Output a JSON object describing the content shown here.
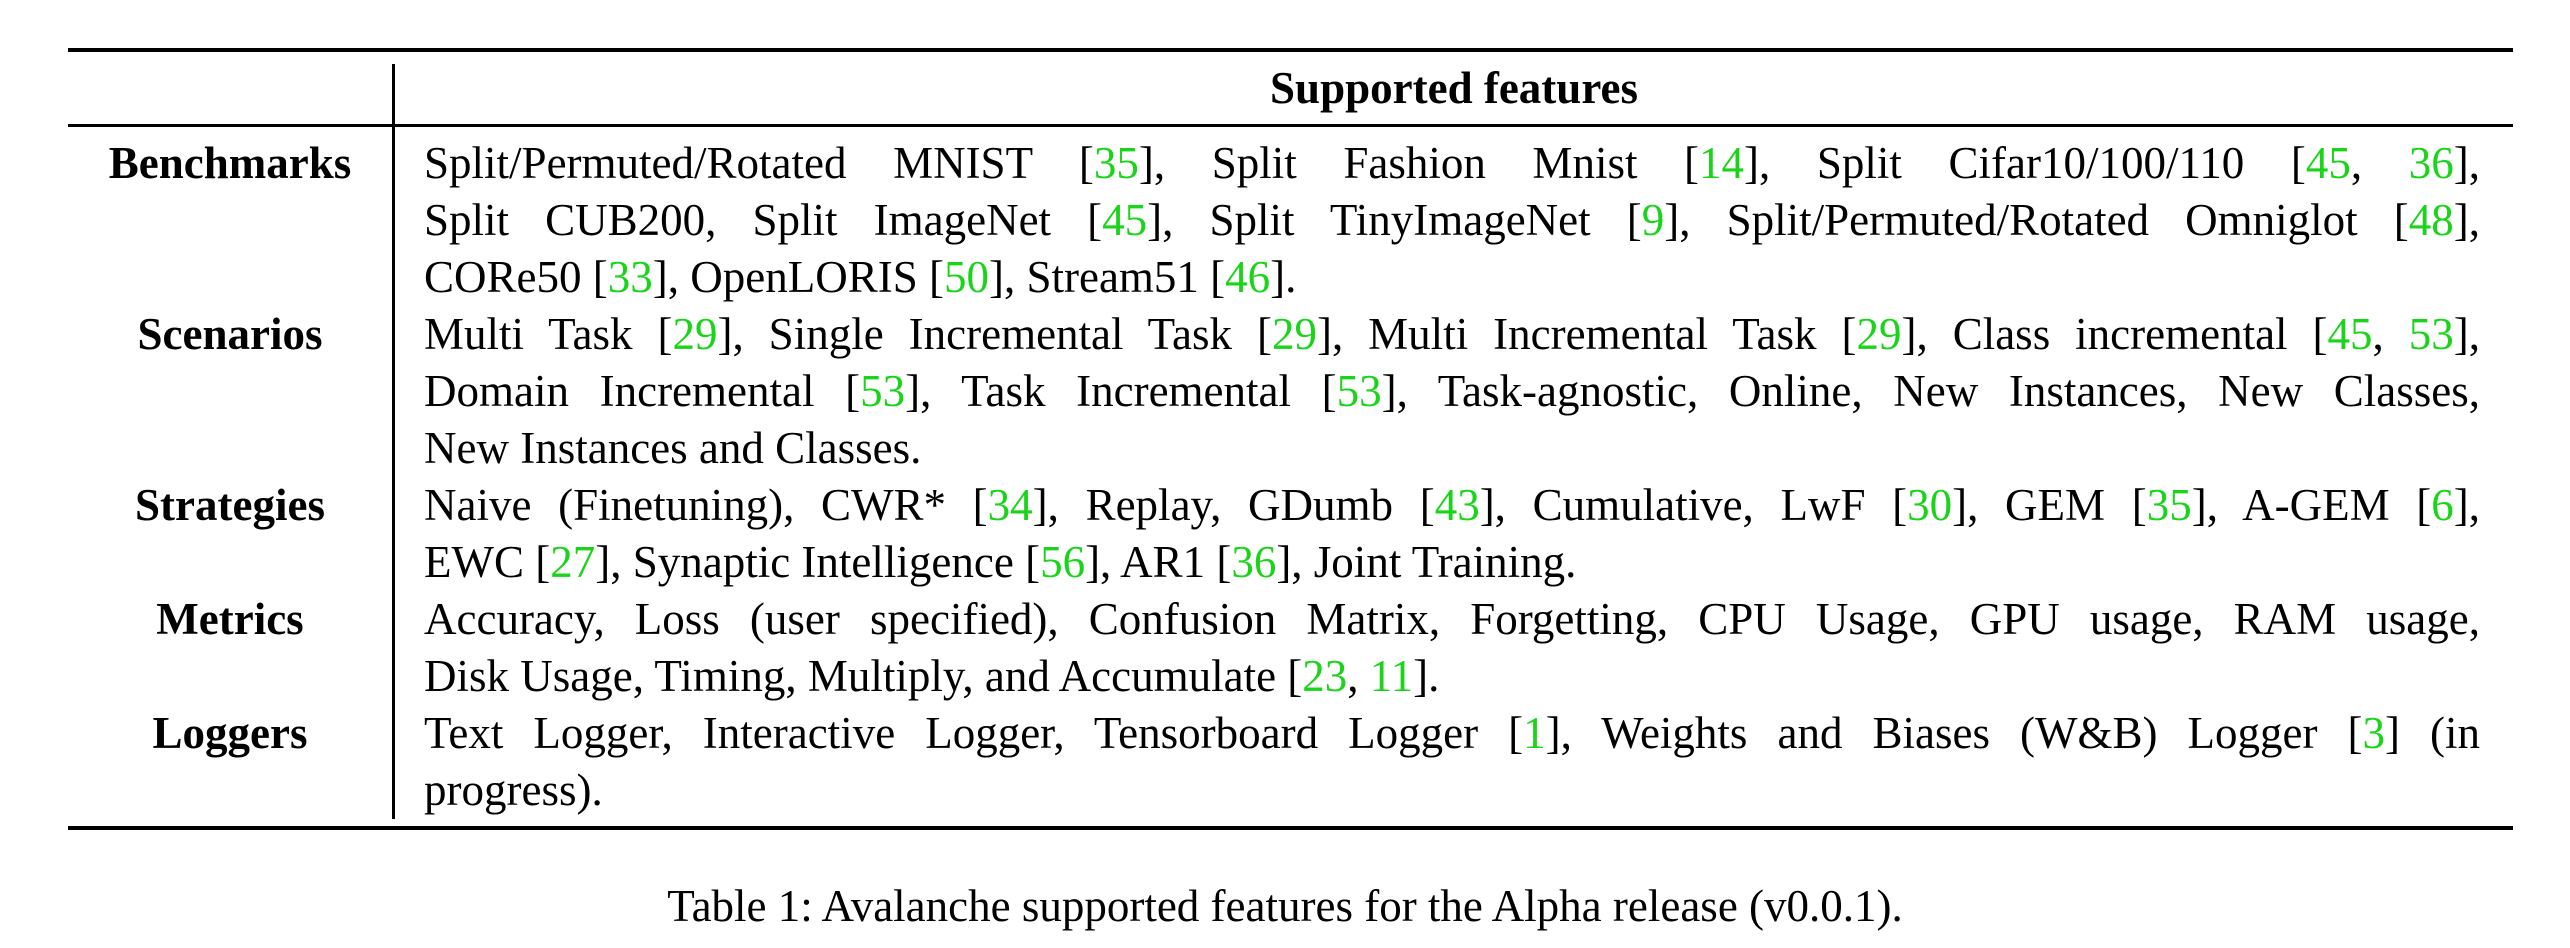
{
  "table": {
    "header": "Supported features",
    "rows": [
      {
        "label": "Benchmarks",
        "lines": [
          "Split/Permuted/Rotated MNIST [{35}], Split Fashion Mnist [{14}], Split Cifar10/100/110 [{45}, {36}],",
          "Split CUB200, Split ImageNet [{45}], Split TinyImageNet [{9}], Split/Permuted/Rotated Omniglot [{48}],",
          "CORe50 [{33}], OpenLORIS [{50}], Stream51 [{46}]."
        ]
      },
      {
        "label": "Scenarios",
        "lines": [
          "Multi Task [{29}], Single Incremental Task [{29}], Multi Incremental Task [{29}], Class incremental [{45}, {53}],",
          "Domain Incremental [{53}], Task Incremental [{53}], Task-agnostic, Online, New Instances, New Classes,",
          "New Instances and Classes."
        ]
      },
      {
        "label": "Strategies",
        "lines": [
          "Naive (Finetuning), CWR* [{34}], Replay, GDumb [{43}], Cumulative, LwF [{30}], GEM [{35}], A-GEM [{6}],",
          "EWC [{27}], Synaptic Intelligence [{56}], AR1 [{36}], Joint Training."
        ]
      },
      {
        "label": "Metrics",
        "lines": [
          "Accuracy, Loss (user specified), Confusion Matrix, Forgetting, CPU Usage, GPU usage, RAM usage,",
          "Disk Usage, Timing, Multiply, and Accumulate [{23}, {11}]."
        ]
      },
      {
        "label": "Loggers",
        "lines": [
          "Text Logger, Interactive Logger, Tensorboard Logger [{1}], Weights and Biases (W&B) Logger [{3}] (in",
          "progress)."
        ]
      }
    ]
  },
  "caption": "Table 1: Avalanche supported features for the Alpha release (v0.0.1).",
  "colors": {
    "citation": "#19d419",
    "text": "#000000"
  }
}
